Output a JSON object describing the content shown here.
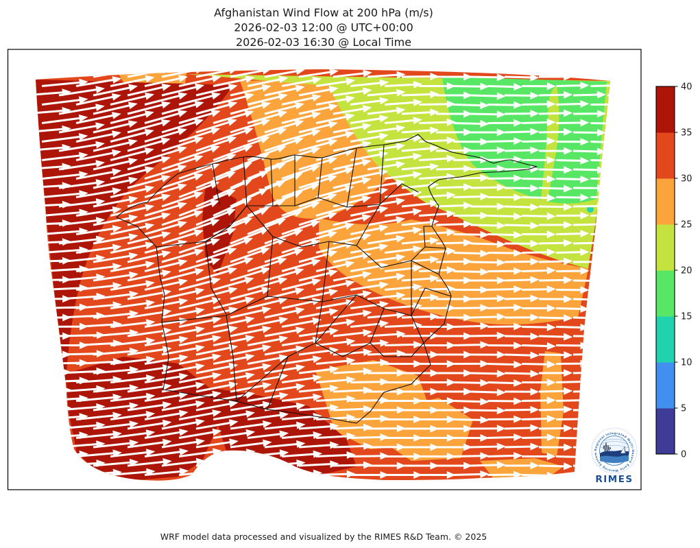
{
  "figure": {
    "title": {
      "line1": "Afghanistan Wind Flow at 200 hPa (m/s)",
      "line2": "2026-02-03 12:00 @ UTC+00:00",
      "line3": "2026-02-03 16:30 @ Local Time"
    },
    "footer": "WRF model data processed and visualized by the RIMES R&D Team. © 2025"
  },
  "logo": {
    "wordmark": "RIMES",
    "ring_text": "Regional Integrated Multi-Hazard Early Warning System",
    "accent_color": "#1c4f94"
  },
  "chart_data": {
    "type": "heatmap",
    "title": "Afghanistan Wind Flow at 200 hPa (m/s)",
    "valid_time_utc": "2026-02-03 12:00 @ UTC+00:00",
    "valid_time_local": "2026-02-03 16:30 @ Local Time",
    "variable": "wind speed at 200 hPa",
    "units": "m/s",
    "model": "WRF",
    "colorbar": {
      "min": 0,
      "max": 40,
      "step": 5,
      "ticks": [
        0,
        5,
        10,
        15,
        20,
        25,
        30,
        35,
        40
      ],
      "colors": [
        {
          "range": "0-5",
          "color": "#3f3c97"
        },
        {
          "range": "5-10",
          "color": "#4190f0"
        },
        {
          "range": "10-15",
          "color": "#20d3ae"
        },
        {
          "range": "15-20",
          "color": "#58e765"
        },
        {
          "range": "20-25",
          "color": "#c4e33e"
        },
        {
          "range": "25-30",
          "color": "#fba43c"
        },
        {
          "range": "30-35",
          "color": "#e2481b"
        },
        {
          "range": "35-40",
          "color": "#ac1507"
        }
      ]
    },
    "flow": {
      "direction": "west-to-east (zonal jet), veering slightly south over western Afghanistan",
      "arrow_color": "#ffffff"
    },
    "regions": [
      {
        "area": "far west / Iran border band",
        "speed_range_ms": "35-40"
      },
      {
        "area": "southwest deserts and bottom-left lobe",
        "speed_range_ms": "35-40"
      },
      {
        "area": "west-to-center diagonal band",
        "speed_range_ms": "30-35"
      },
      {
        "area": "north-central plateau and Kabul east",
        "speed_range_ms": "25-30"
      },
      {
        "area": "northeast band",
        "speed_range_ms": "20-25"
      },
      {
        "area": "far northeast (Wakhan / Pamir)",
        "speed_range_ms": "15-20"
      },
      {
        "area": "tiny spot at eastern domain edge",
        "speed_range_ms": "10-15"
      },
      {
        "area": "southeast lowlands",
        "speed_range_ms": "30-35 with 25-30 patches"
      }
    ],
    "overlays": [
      "province boundaries",
      "white wind-direction arrows",
      "RIMES logo"
    ],
    "grid": false,
    "legend_position": "right colorbar"
  }
}
